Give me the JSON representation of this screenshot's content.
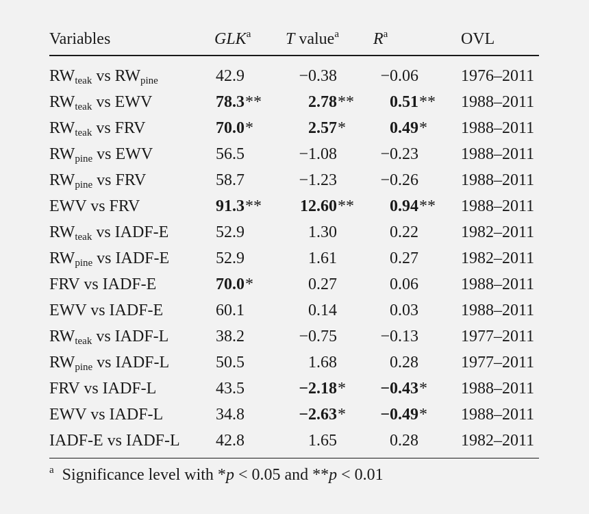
{
  "table": {
    "headers": [
      {
        "text": "Variables",
        "italic": false,
        "sup": ""
      },
      {
        "text": "GLK",
        "italic": true,
        "sup": "a"
      },
      {
        "text": "T",
        "italic": true,
        "tail": " value",
        "sup": "a"
      },
      {
        "text": "R",
        "italic": true,
        "sup": "a"
      },
      {
        "text": "OVL",
        "italic": false,
        "sup": ""
      }
    ],
    "rows": [
      {
        "var": [
          {
            "t": "RW"
          },
          {
            "s": "teak"
          },
          {
            "t": " vs RW"
          },
          {
            "s": "pine"
          }
        ],
        "glk": {
          "v": "42.9",
          "sig": "",
          "b": false
        },
        "t": {
          "v": "−0.38",
          "sig": "",
          "b": false
        },
        "r": {
          "v": "−0.06",
          "sig": "",
          "b": false
        },
        "ovl": "1976–2011"
      },
      {
        "var": [
          {
            "t": "RW"
          },
          {
            "s": "teak"
          },
          {
            "t": " vs EWV"
          }
        ],
        "glk": {
          "v": "78.3",
          "sig": "**",
          "b": true
        },
        "t": {
          "v": "2.78",
          "sig": "**",
          "b": true
        },
        "r": {
          "v": "0.51",
          "sig": "**",
          "b": true
        },
        "ovl": "1988–2011"
      },
      {
        "var": [
          {
            "t": "RW"
          },
          {
            "s": "teak"
          },
          {
            "t": " vs FRV"
          }
        ],
        "glk": {
          "v": "70.0",
          "sig": "*",
          "b": true
        },
        "t": {
          "v": "2.57",
          "sig": "*",
          "b": true
        },
        "r": {
          "v": "0.49",
          "sig": "*",
          "b": true
        },
        "ovl": "1988–2011"
      },
      {
        "var": [
          {
            "t": "RW"
          },
          {
            "s": "pine"
          },
          {
            "t": " vs EWV"
          }
        ],
        "glk": {
          "v": "56.5",
          "sig": "",
          "b": false
        },
        "t": {
          "v": "−1.08",
          "sig": "",
          "b": false
        },
        "r": {
          "v": "−0.23",
          "sig": "",
          "b": false
        },
        "ovl": "1988–2011"
      },
      {
        "var": [
          {
            "t": "RW"
          },
          {
            "s": "pine"
          },
          {
            "t": " vs FRV"
          }
        ],
        "glk": {
          "v": "58.7",
          "sig": "",
          "b": false
        },
        "t": {
          "v": "−1.23",
          "sig": "",
          "b": false
        },
        "r": {
          "v": "−0.26",
          "sig": "",
          "b": false
        },
        "ovl": "1988–2011"
      },
      {
        "var": [
          {
            "t": "EWV vs FRV"
          }
        ],
        "glk": {
          "v": "91.3",
          "sig": "**",
          "b": true
        },
        "t": {
          "v": "12.60",
          "sig": "**",
          "b": true
        },
        "r": {
          "v": "0.94",
          "sig": "**",
          "b": true
        },
        "ovl": "1988–2011"
      },
      {
        "var": [
          {
            "t": "RW"
          },
          {
            "s": "teak"
          },
          {
            "t": " vs IADF-E"
          }
        ],
        "glk": {
          "v": "52.9",
          "sig": "",
          "b": false
        },
        "t": {
          "v": "1.30",
          "sig": "",
          "b": false
        },
        "r": {
          "v": "0.22",
          "sig": "",
          "b": false
        },
        "ovl": "1982–2011"
      },
      {
        "var": [
          {
            "t": "RW"
          },
          {
            "s": "pine"
          },
          {
            "t": " vs IADF-E"
          }
        ],
        "glk": {
          "v": "52.9",
          "sig": "",
          "b": false
        },
        "t": {
          "v": "1.61",
          "sig": "",
          "b": false
        },
        "r": {
          "v": "0.27",
          "sig": "",
          "b": false
        },
        "ovl": "1982–2011"
      },
      {
        "var": [
          {
            "t": "FRV vs IADF-E"
          }
        ],
        "glk": {
          "v": "70.0",
          "sig": "*",
          "b": true
        },
        "t": {
          "v": "0.27",
          "sig": "",
          "b": false
        },
        "r": {
          "v": "0.06",
          "sig": "",
          "b": false
        },
        "ovl": "1988–2011"
      },
      {
        "var": [
          {
            "t": "EWV vs IADF-E"
          }
        ],
        "glk": {
          "v": "60.1",
          "sig": "",
          "b": false
        },
        "t": {
          "v": "0.14",
          "sig": "",
          "b": false
        },
        "r": {
          "v": "0.03",
          "sig": "",
          "b": false
        },
        "ovl": "1988–2011"
      },
      {
        "var": [
          {
            "t": "RW"
          },
          {
            "s": "teak"
          },
          {
            "t": " vs IADF-L"
          }
        ],
        "glk": {
          "v": "38.2",
          "sig": "",
          "b": false
        },
        "t": {
          "v": "−0.75",
          "sig": "",
          "b": false
        },
        "r": {
          "v": "−0.13",
          "sig": "",
          "b": false
        },
        "ovl": "1977–2011"
      },
      {
        "var": [
          {
            "t": "RW"
          },
          {
            "s": "pine"
          },
          {
            "t": " vs IADF-L"
          }
        ],
        "glk": {
          "v": "50.5",
          "sig": "",
          "b": false
        },
        "t": {
          "v": "1.68",
          "sig": "",
          "b": false
        },
        "r": {
          "v": "0.28",
          "sig": "",
          "b": false
        },
        "ovl": "1977–2011"
      },
      {
        "var": [
          {
            "t": "FRV vs IADF-L"
          }
        ],
        "glk": {
          "v": "43.5",
          "sig": "",
          "b": false
        },
        "t": {
          "v": "−2.18",
          "sig": "*",
          "b": true
        },
        "r": {
          "v": "−0.43",
          "sig": "*",
          "b": true
        },
        "ovl": "1988–2011"
      },
      {
        "var": [
          {
            "t": "EWV vs IADF-L"
          }
        ],
        "glk": {
          "v": "34.8",
          "sig": "",
          "b": false
        },
        "t": {
          "v": "−2.63",
          "sig": "*",
          "b": true
        },
        "r": {
          "v": "−0.49",
          "sig": "*",
          "b": true
        },
        "ovl": "1988–2011"
      },
      {
        "var": [
          {
            "t": "IADF-E vs IADF-L"
          }
        ],
        "glk": {
          "v": "42.8",
          "sig": "",
          "b": false
        },
        "t": {
          "v": "1.65",
          "sig": "",
          "b": false
        },
        "r": {
          "v": "0.28",
          "sig": "",
          "b": false
        },
        "ovl": "1982–2011"
      }
    ]
  },
  "footnote": {
    "marker": "a",
    "parts": [
      {
        "t": "Significance level with *",
        "i": false
      },
      {
        "t": "p",
        "i": true
      },
      {
        "t": " < 0.05 and **",
        "i": false
      },
      {
        "t": "p",
        "i": true
      },
      {
        "t": " < 0.01",
        "i": false
      }
    ]
  },
  "colors": {
    "background": "#f2f2f2",
    "text": "#1a1a1a"
  }
}
